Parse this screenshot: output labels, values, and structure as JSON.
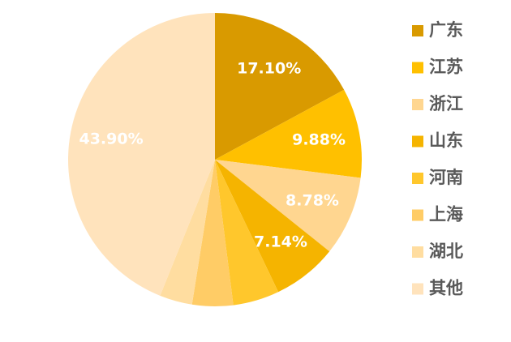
{
  "chart_data": {
    "type": "pie",
    "categories": [
      "广东",
      "江苏",
      "浙江",
      "山东",
      "河南",
      "上海",
      "湖北",
      "其他"
    ],
    "values": [
      17.1,
      9.88,
      8.78,
      7.14,
      5.1,
      4.5,
      3.6,
      43.9
    ],
    "value_labels": [
      "17.10%",
      "9.88%",
      "8.78%",
      "7.14%",
      null,
      null,
      null,
      "43.90%"
    ],
    "colors": [
      "#D99A00",
      "#FFC000",
      "#FFD690",
      "#F5B400",
      "#FFC72C",
      "#FFCC66",
      "#FFDDA0",
      "#FFE3BC"
    ],
    "legend": "right"
  }
}
